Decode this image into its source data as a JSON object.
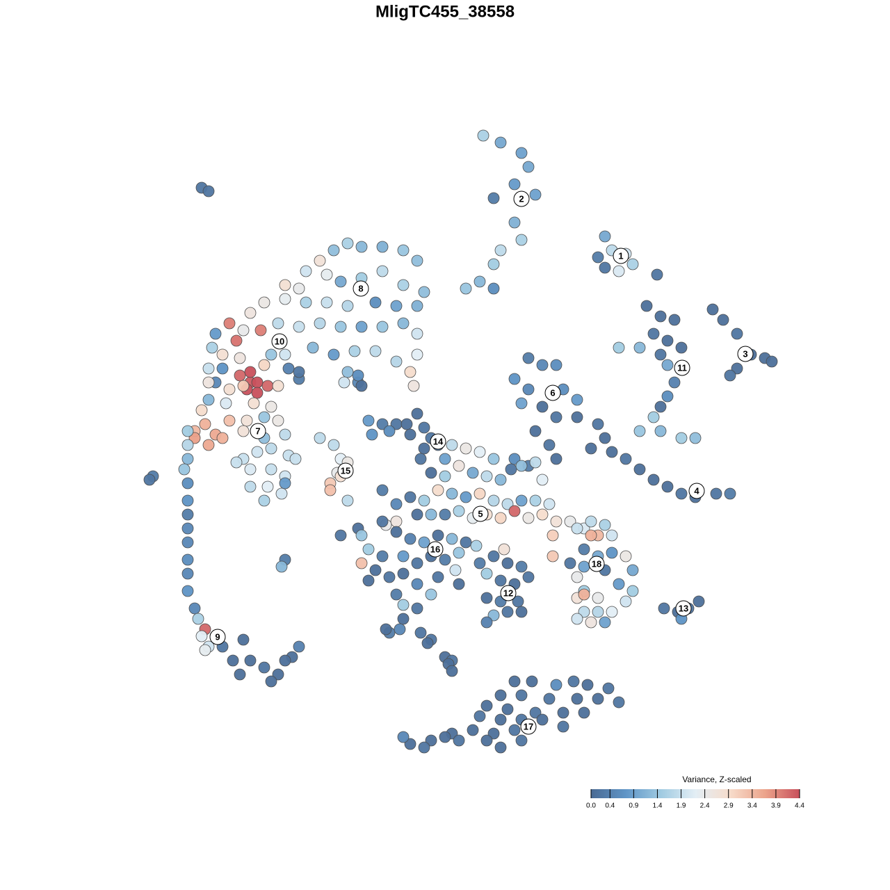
{
  "chart_data": {
    "type": "scatter",
    "title": "MligTC455_38558",
    "xlim": [
      20,
      115
    ],
    "ylim": [
      18,
      110
    ],
    "x": [
      69.5,
      72,
      75,
      76,
      77,
      74,
      71,
      74,
      75,
      72,
      71,
      69,
      71,
      67,
      87,
      88,
      86,
      90,
      91,
      87,
      89,
      94.5,
      93,
      95,
      97,
      94,
      96,
      92,
      89,
      95,
      98,
      96,
      97,
      96,
      95,
      94,
      92,
      95,
      98,
      100,
      102.5,
      104,
      106,
      108,
      110,
      106,
      105,
      111,
      76,
      78,
      80,
      74,
      76,
      81,
      83,
      75,
      78,
      80,
      83,
      77,
      79,
      80,
      76,
      74,
      86,
      87,
      88,
      90,
      92,
      94,
      96,
      98,
      100,
      103,
      105,
      85,
      50,
      52,
      55,
      58,
      60,
      48,
      46,
      44,
      47,
      41,
      43,
      49,
      52,
      55,
      58,
      61,
      60,
      57,
      54,
      50,
      47,
      44,
      41,
      38,
      36,
      40,
      43,
      46,
      49,
      52,
      55,
      58,
      60,
      60,
      59,
      57,
      54,
      51,
      48,
      45,
      59.5,
      50,
      51.5,
      33,
      35,
      37.5,
      31,
      34,
      32,
      34.5,
      39,
      41,
      30.5,
      32,
      34.5,
      38,
      41.5,
      43,
      30,
      31,
      36,
      36,
      37,
      35.5,
      37,
      38.5,
      35,
      33,
      30,
      40,
      32.5,
      36.5,
      39,
      30,
      29,
      33,
      29.5,
      31,
      28,
      28,
      32,
      30,
      35.5,
      38,
      40,
      35,
      38,
      41,
      39,
      41.5,
      37,
      35,
      42.5,
      36,
      39,
      41,
      36,
      38.5,
      40.5,
      38,
      41,
      34,
      27,
      27,
      27,
      26.5,
      27,
      27,
      27,
      27,
      27,
      27,
      27,
      27,
      28,
      28.5,
      29.5,
      31,
      29,
      30,
      29.5,
      32,
      35,
      33.5,
      36,
      34.5,
      38,
      40,
      42,
      39,
      43,
      41,
      22,
      21.5,
      41,
      40.5,
      29,
      30,
      46,
      48,
      49,
      50,
      48.5,
      47.5,
      47.5,
      50,
      49,
      49.5,
      51.5,
      52,
      43,
      53,
      55,
      57,
      58.5,
      60,
      61,
      59,
      62,
      61,
      63,
      64,
      53.5,
      56,
      60.5,
      62,
      65,
      67,
      69,
      71,
      66,
      68,
      70,
      72,
      73.5,
      75,
      77,
      78,
      64,
      63,
      65,
      67,
      69,
      71,
      73,
      75,
      77,
      79,
      61,
      59,
      57,
      55,
      60,
      62,
      64,
      66,
      68,
      70,
      72,
      74,
      76,
      78,
      80,
      82,
      84,
      85,
      86,
      57,
      55.5,
      49,
      51.5,
      52,
      55,
      57,
      59,
      61,
      63,
      65,
      67,
      53,
      55,
      58,
      60,
      62,
      64,
      66,
      52,
      54,
      56,
      58,
      60,
      63,
      65.5,
      53,
      57,
      62,
      60,
      58,
      60.5,
      58,
      56,
      62,
      55.5,
      69,
      71,
      73,
      75,
      70,
      72,
      74,
      76,
      70,
      72,
      74.5,
      71,
      73,
      75,
      70,
      72.5,
      68.5,
      66,
      61.5,
      64,
      65,
      57.5,
      64.5,
      65,
      83,
      85,
      87,
      88,
      84,
      86,
      88,
      82,
      84,
      87,
      83,
      90,
      91,
      89,
      91,
      90,
      84,
      86,
      83,
      84,
      86,
      88,
      83,
      85,
      87,
      84,
      79.5,
      79.5,
      95.5,
      97.5,
      99,
      100.5,
      98,
      74,
      76.5,
      80,
      82.5,
      84.5,
      87.5,
      72,
      75,
      79,
      83,
      86,
      89,
      70,
      73,
      77,
      81,
      84,
      69,
      72,
      75,
      78,
      81,
      68,
      71,
      74,
      65,
      66,
      62,
      59,
      61,
      58,
      70,
      72,
      75,
      64
    ],
    "y": [
      108.5,
      107.5,
      106,
      104,
      100,
      101.5,
      99.5,
      96,
      93.5,
      92,
      90,
      87.5,
      86.5,
      86.5,
      94,
      92,
      91,
      91.5,
      90,
      89.5,
      89,
      88.5,
      84,
      82.5,
      82,
      80,
      79,
      78,
      78,
      77,
      78,
      75.5,
      73,
      71,
      69.5,
      68,
      66,
      66,
      65,
      65,
      83.5,
      82,
      80,
      77,
      76.5,
      75,
      74,
      76,
      76.5,
      75.5,
      75.5,
      73.5,
      72,
      72,
      70.5,
      70,
      69.5,
      68,
      68,
      66,
      64,
      62,
      61,
      62,
      67,
      65,
      63,
      62,
      60.5,
      59,
      58,
      57,
      56.5,
      57,
      57,
      63.5,
      93,
      92.5,
      92.5,
      92,
      90.5,
      92,
      90.5,
      89,
      88.5,
      87,
      86.5,
      87.5,
      88,
      89,
      87,
      86,
      84,
      84,
      84.5,
      84,
      84.5,
      84.5,
      85,
      84.5,
      83,
      81.5,
      81,
      81.5,
      81,
      81,
      81,
      81.5,
      80,
      77,
      74.5,
      76,
      77.5,
      77.5,
      77,
      78,
      72.5,
      74.5,
      73,
      81.5,
      80.5,
      80.5,
      80,
      79,
      77,
      76.5,
      77,
      77,
      78,
      75,
      74,
      75.5,
      75,
      73.5,
      75,
      73,
      73,
      74.5,
      73,
      72,
      71.5,
      72.5,
      72.5,
      72,
      73,
      72.5,
      70,
      70,
      69.5,
      70.5,
      69,
      67.5,
      67,
      65.5,
      66,
      65,
      65,
      64,
      67.5,
      68,
      67.5,
      66,
      65,
      65.5,
      63.5,
      62.5,
      63,
      62,
      62,
      60.5,
      60.5,
      59.5,
      58,
      58,
      57,
      56,
      58.5,
      61.5,
      66,
      64,
      62,
      60.5,
      58.5,
      56,
      54,
      52,
      50,
      47.5,
      45.5,
      43,
      40.5,
      39,
      37.5,
      36.5,
      36.5,
      35,
      34.5,
      35,
      36,
      33,
      33,
      31,
      32,
      31,
      33.5,
      30,
      35,
      33,
      59.5,
      59,
      47.5,
      46.5,
      101,
      100.5,
      65,
      64,
      62,
      61.5,
      60,
      58.5,
      57.5,
      56,
      59.5,
      73,
      74,
      72.5,
      74.5,
      67.5,
      67,
      67,
      67,
      68.5,
      66.5,
      65.5,
      65,
      63.5,
      64,
      62,
      65.5,
      66,
      62,
      60,
      64,
      63.5,
      63,
      62,
      61,
      60,
      59.5,
      59,
      60.5,
      61,
      61.5,
      59,
      59.5,
      57.5,
      57,
      56.5,
      57,
      56,
      55.5,
      56,
      56,
      55.5,
      56,
      56.5,
      55.5,
      57.5,
      54,
      54,
      54,
      54.5,
      53.5,
      54,
      53.5,
      54.5,
      53.5,
      54,
      53,
      53,
      52,
      53,
      51,
      53,
      52.5,
      51,
      52,
      51,
      53,
      51.5,
      50.5,
      50,
      51,
      50.5,
      50,
      49,
      48,
      48,
      47,
      48,
      47.5,
      48.5,
      47,
      46,
      45,
      45.5,
      44,
      45,
      46,
      44.5,
      42.5,
      42.5,
      40.5,
      41,
      37,
      39,
      37,
      36,
      37.5,
      47,
      48,
      47,
      46.5,
      45.5,
      44.5,
      44,
      45,
      42,
      41.5,
      41.5,
      39.5,
      40,
      40,
      38.5,
      49,
      49.5,
      44,
      35.5,
      33.5,
      33,
      37.5,
      32.5,
      31.5,
      52,
      51,
      52.5,
      51,
      49,
      48,
      48.5,
      47,
      46.5,
      46,
      45,
      48,
      46,
      44,
      43,
      41.5,
      43,
      42,
      42,
      40,
      40,
      40,
      39,
      38.5,
      38.5,
      42.5,
      51,
      48,
      40.5,
      40,
      40.5,
      41.5,
      39,
      30,
      30,
      29.5,
      30,
      29.5,
      29,
      28,
      28,
      27.5,
      27.5,
      27.5,
      27,
      26.5,
      26,
      25.5,
      25.5,
      25.5,
      25,
      24.5,
      24.5,
      24.5,
      23.5,
      23,
      22.5,
      23,
      22.5,
      21.5,
      21.5,
      21,
      20.5,
      22,
      21.5,
      20.5,
      21.5,
      22
    ],
    "values": [
      1.6,
      1.0,
      0.9,
      1.0,
      0.9,
      0.8,
      0.3,
      1.1,
      1.6,
      1.8,
      1.5,
      1.2,
      0.6,
      1.4,
      1.0,
      1.8,
      0.3,
      2.0,
      1.6,
      0.2,
      2.1,
      0.2,
      0.1,
      0.1,
      0.1,
      0.2,
      0.1,
      1.2,
      1.5,
      0.2,
      0.1,
      1.0,
      0.4,
      0.6,
      0.1,
      1.5,
      1.4,
      1.2,
      1.5,
      1.3,
      0.1,
      0.1,
      0.2,
      0.1,
      0.1,
      0.1,
      0.2,
      0.1,
      0.3,
      0.5,
      0.6,
      0.7,
      0.5,
      0.6,
      0.8,
      0.9,
      0.1,
      0.2,
      0.1,
      0.1,
      0.2,
      0.1,
      0.3,
      0.6,
      0.2,
      0.1,
      0.1,
      0.2,
      0.1,
      0.1,
      0.1,
      0.2,
      0.1,
      0.2,
      0.3,
      0.1,
      1.6,
      1.2,
      1.1,
      1.4,
      1.3,
      1.3,
      2.7,
      2.0,
      2.3,
      2.8,
      2.4,
      1.0,
      1.5,
      1.8,
      1.6,
      1.3,
      1.1,
      0.9,
      0.6,
      1.7,
      1.9,
      1.6,
      2.3,
      2.5,
      2.6,
      1.8,
      1.9,
      1.7,
      1.4,
      0.9,
      1.4,
      1.2,
      2.0,
      2.2,
      2.9,
      1.7,
      1.8,
      1.6,
      0.8,
      1.2,
      2.6,
      1.3,
      0.5,
      4.0,
      2.4,
      4.0,
      0.8,
      4.1,
      2.8,
      2.6,
      1.4,
      2.0,
      1.6,
      0.7,
      4.2,
      3.0,
      0.4,
      0.3,
      1.9,
      0.5,
      4.3,
      4.4,
      4.4,
      4.4,
      4.4,
      4.2,
      3.2,
      2.8,
      2.6,
      2.8,
      2.1,
      2.8,
      2.5,
      1.2,
      2.9,
      3.3,
      3.5,
      3.6,
      3.4,
      3.7,
      3.5,
      3.6,
      2.7,
      1.4,
      2.5,
      2.7,
      1.3,
      1.8,
      1.8,
      1.9,
      2.0,
      1.9,
      1.9,
      2.1,
      1.9,
      2.0,
      1.8,
      2.2,
      2.0,
      1.6,
      0.8,
      1.9,
      1.5,
      1.7,
      1.2,
      1.4,
      0.6,
      0.7,
      0.3,
      0.5,
      0.5,
      0.6,
      0.5,
      0.7,
      0.5,
      1.6,
      4.2,
      2.7,
      2.2,
      2.0,
      2.3,
      0.2,
      0.1,
      0.1,
      0.1,
      0.1,
      0.2,
      0.1,
      0.1,
      0.1,
      0.4,
      0.1,
      0.3,
      0.2,
      0.3,
      1.2,
      0.2,
      0.2,
      1.8,
      1.8,
      2.2,
      2.5,
      2.4,
      3.2,
      3.3,
      1.8,
      2.8,
      2.0,
      0.6,
      0.1,
      0.2,
      0.8,
      0.3,
      0.2,
      0.1,
      0.1,
      0.2,
      0.1,
      0.2,
      0.1,
      0.3,
      0.9,
      0.7,
      0.6,
      0.2,
      0.1,
      1.8,
      2.5,
      2.2,
      1.4,
      2.6,
      1.0,
      1.8,
      1.2,
      0.2,
      1.3,
      1.8,
      2.2,
      1.5,
      2.9,
      1.2,
      0.8,
      3.0,
      1.7,
      1.8,
      0.9,
      1.6,
      2.0,
      1.5,
      0.2,
      0.5,
      0.3,
      0.1,
      1.2,
      0.3,
      1.6,
      2.3,
      2.8,
      3.0,
      4.2,
      2.5,
      2.9,
      2.7,
      2.4,
      2.1,
      1.8,
      3.4,
      2.6,
      2.4,
      0.2,
      0.1,
      1.4,
      0.2,
      0.1,
      0.4,
      0.9,
      0.1,
      1.2,
      0.2,
      1.5,
      0.3,
      0.8,
      0.2,
      0.1,
      0.3,
      1.4,
      3.3,
      0.1,
      0.2,
      0.1,
      0.5,
      0.2,
      2.0,
      0.1,
      0.3,
      1.4,
      0.2,
      1.5,
      0.2,
      0.1,
      0.3,
      0.2,
      0.1,
      0.3,
      0.2,
      0.1,
      0.3,
      1.5,
      0.2,
      0.1,
      0.2,
      0.1,
      0.3,
      0.2,
      1.2,
      0.2,
      0.1,
      0.4,
      2.7,
      1.6,
      0.1,
      0.1,
      0.1,
      0.2,
      0.5,
      0.1,
      0.1,
      1.9,
      3.5,
      1.6,
      2.0,
      0.3,
      1.0,
      0.7,
      0.2,
      0.9,
      0.2,
      2.4,
      2.5,
      1.0,
      0.8,
      1.5,
      2.0,
      1.5,
      2.4,
      2.7,
      1.8,
      1.7,
      2.2,
      2.0,
      2.6,
      0.9,
      3.5,
      3.1,
      3.2,
      0.2,
      0.1,
      0.2,
      0.1,
      0.7,
      0.1,
      0.1,
      0.6,
      0.2,
      0.1,
      0.2,
      0.1,
      0.2,
      0.2,
      0.1,
      0.1,
      0.2,
      0.1,
      0.1,
      0.2,
      0.1,
      0.1,
      0.2,
      0.1,
      0.2,
      0.1,
      0.2,
      0.1,
      0.1,
      0.2,
      0.1,
      0.2,
      0.1,
      0.1,
      0.2,
      0.5,
      0.1,
      0.1,
      0.2,
      0.1
    ],
    "cluster_labels": [
      {
        "label": "1",
        "x": 89.3,
        "y": 91.2
      },
      {
        "label": "2",
        "x": 75,
        "y": 99.4
      },
      {
        "label": "3",
        "x": 107.2,
        "y": 77.1
      },
      {
        "label": "4",
        "x": 100.2,
        "y": 57.4
      },
      {
        "label": "5",
        "x": 69.1,
        "y": 54.1
      },
      {
        "label": "6",
        "x": 79.5,
        "y": 71.5
      },
      {
        "label": "7",
        "x": 37.1,
        "y": 66
      },
      {
        "label": "8",
        "x": 51.9,
        "y": 86.5
      },
      {
        "label": "9",
        "x": 31.3,
        "y": 36.4
      },
      {
        "label": "10",
        "x": 40.2,
        "y": 78.9
      },
      {
        "label": "11",
        "x": 98.1,
        "y": 75.1
      },
      {
        "label": "12",
        "x": 73.1,
        "y": 42.7
      },
      {
        "label": "13",
        "x": 98.3,
        "y": 40.5
      },
      {
        "label": "14",
        "x": 63,
        "y": 64.5
      },
      {
        "label": "15",
        "x": 49.7,
        "y": 60.3
      },
      {
        "label": "16",
        "x": 62.6,
        "y": 49
      },
      {
        "label": "17",
        "x": 76,
        "y": 23.5
      },
      {
        "label": "18",
        "x": 85.8,
        "y": 46.9
      }
    ],
    "colorbar": {
      "title": "Variance, Z-scaled",
      "lim": [
        0,
        4.4
      ],
      "ticks": [
        {
          "value": 0,
          "label": "0.0"
        },
        0.4,
        0.9,
        1.4,
        1.9,
        2.4,
        2.9,
        3.4,
        3.9,
        4.4
      ],
      "colors": [
        "#4a6a93",
        "#5f95c7",
        "#9fcae1",
        "#e3eef5",
        "#f7dccb",
        "#eca48b",
        "#c8505c"
      ]
    }
  }
}
